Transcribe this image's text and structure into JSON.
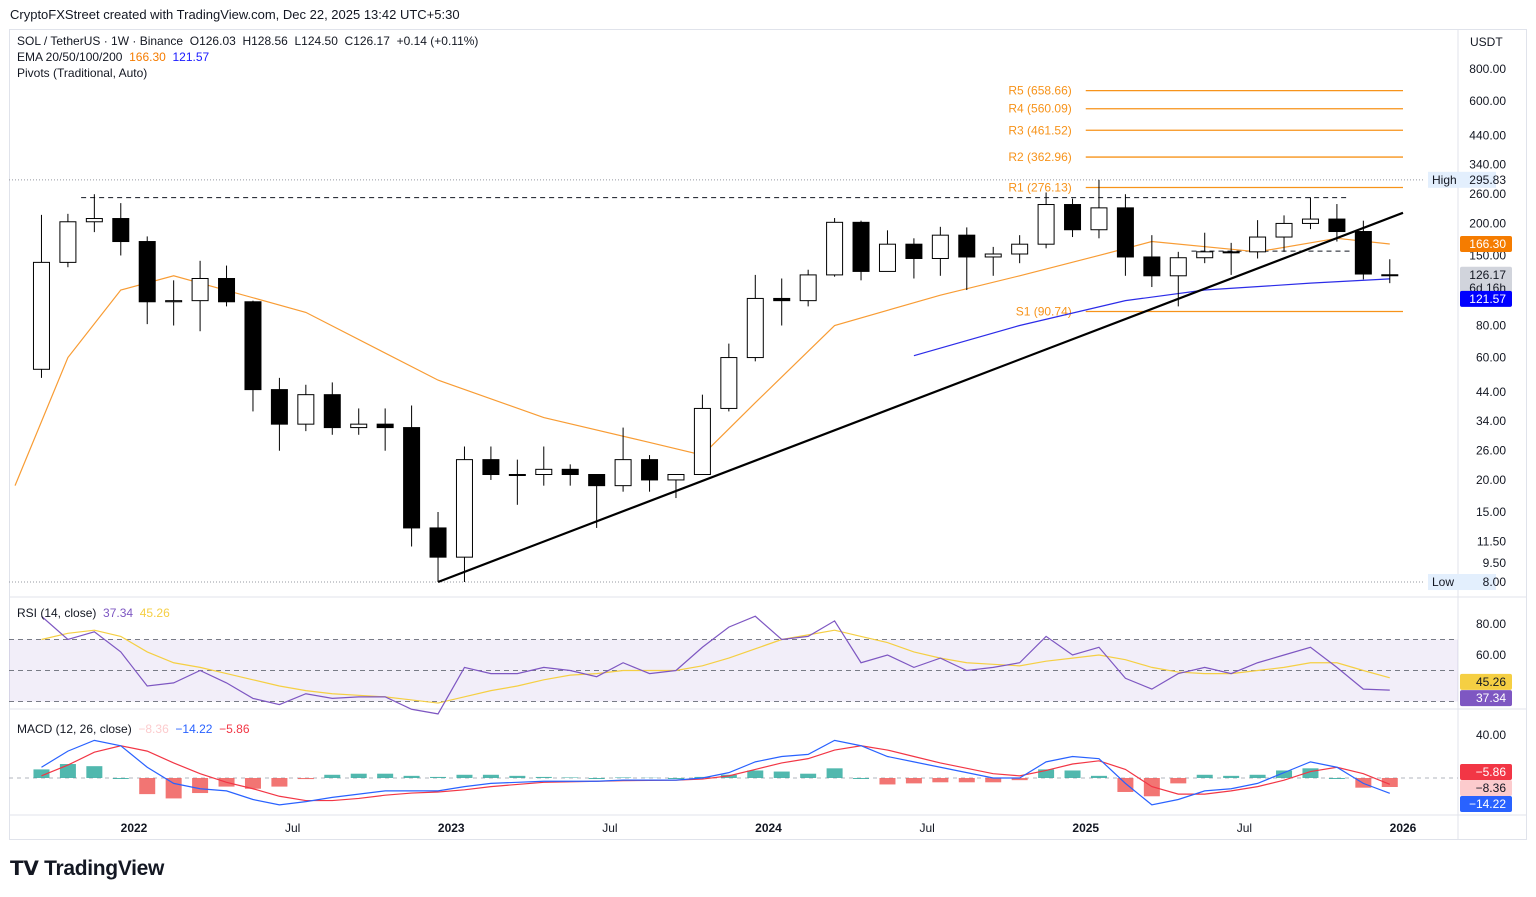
{
  "header": {
    "credit": "CryptoFXStreet created with TradingView.com, Dec 22, 2025 13:42 UTC+5:30"
  },
  "legend": {
    "symbol": "SOL / TetherUS · 1W · Binance",
    "ohlc": "O126.03  H128.56  L124.50  C126.17  +0.14 (+0.11%)",
    "ema_label": "EMA 20/50/100/200",
    "ema_val1": "166.30",
    "ema_val2": "121.57",
    "pivots": "Pivots (Traditional, Auto)"
  },
  "rsi_legend": {
    "label": "RSI (14, close)",
    "v1": "37.34",
    "v2": "45.26"
  },
  "macd_legend": {
    "label": "MACD (12, 26, close)",
    "hist": "−8.36",
    "macd": "−14.22",
    "signal": "−5.86"
  },
  "currency": "USDT",
  "logo": "TradingView",
  "colors": {
    "up": "#ffffff",
    "down": "#000000",
    "ema_orange": "#f89c34",
    "ema_blue": "#2c2ce8",
    "pivot": "#f7931a",
    "rsi": "#7e57c2",
    "rsi_ma": "#f5cf43",
    "macd": "#2962ff",
    "signal": "#f23645",
    "hist_up": "#26a69a",
    "hist_down": "#ef5350"
  },
  "chart_data": {
    "type": "candlestick",
    "scale": "log",
    "ylim": [
      8,
      800
    ],
    "price_ticks": [
      "800.00",
      "600.00",
      "440.00",
      "340.00",
      "260.00",
      "200.00",
      "150.00",
      "80.00",
      "60.00",
      "44.00",
      "34.00",
      "26.00",
      "20.00",
      "15.00",
      "11.50",
      "9.50"
    ],
    "x_ticks": [
      {
        "t": "2022-01",
        "label": "2022"
      },
      {
        "t": "2022-07",
        "label": "Jul"
      },
      {
        "t": "2023-01",
        "label": "2023"
      },
      {
        "t": "2023-07",
        "label": "Jul"
      },
      {
        "t": "2024-01",
        "label": "2024"
      },
      {
        "t": "2024-07",
        "label": "Jul"
      },
      {
        "t": "2025-01",
        "label": "2025"
      },
      {
        "t": "2025-07",
        "label": "Jul"
      },
      {
        "t": "2026-01",
        "label": "2026"
      }
    ],
    "candles": [
      [
        "2021-09",
        54,
        216,
        50,
        141
      ],
      [
        "2021-10",
        141,
        218,
        135,
        203
      ],
      [
        "2021-11",
        203,
        260,
        185,
        209
      ],
      [
        "2021-12",
        209,
        240,
        150,
        170
      ],
      [
        "2022-01",
        170,
        178,
        81,
        99
      ],
      [
        "2022-02",
        99,
        120,
        80,
        100
      ],
      [
        "2022-03",
        100,
        143,
        76,
        122
      ],
      [
        "2022-04",
        122,
        137,
        95,
        99
      ],
      [
        "2022-05",
        99,
        100,
        37,
        45
      ],
      [
        "2022-06",
        45,
        50,
        26,
        33
      ],
      [
        "2022-07",
        33,
        47,
        31,
        43
      ],
      [
        "2022-08",
        43,
        48,
        30,
        32
      ],
      [
        "2022-09",
        32,
        38,
        30,
        33
      ],
      [
        "2022-10",
        33,
        38,
        26,
        32
      ],
      [
        "2022-11",
        32,
        39,
        11,
        13
      ],
      [
        "2022-12",
        13,
        15,
        8,
        10
      ],
      [
        "2023-01",
        10,
        27,
        8,
        24
      ],
      [
        "2023-02",
        24,
        27,
        20,
        21
      ],
      [
        "2023-03",
        21,
        24,
        16,
        21
      ],
      [
        "2023-04",
        21,
        27,
        19,
        22
      ],
      [
        "2023-05",
        22,
        23,
        19,
        21
      ],
      [
        "2023-06",
        21,
        21,
        13,
        19
      ],
      [
        "2023-07",
        19,
        32,
        18,
        24
      ],
      [
        "2023-08",
        24,
        25,
        18,
        20
      ],
      [
        "2023-09",
        20,
        21,
        17,
        21
      ],
      [
        "2023-10",
        21,
        43,
        21,
        38
      ],
      [
        "2023-11",
        38,
        68,
        37,
        60
      ],
      [
        "2023-12",
        60,
        126,
        58,
        102
      ],
      [
        "2024-01",
        102,
        122,
        80,
        100
      ],
      [
        "2024-02",
        100,
        132,
        95,
        126
      ],
      [
        "2024-03",
        126,
        210,
        124,
        202
      ],
      [
        "2024-04",
        202,
        205,
        120,
        130
      ],
      [
        "2024-05",
        130,
        188,
        130,
        166
      ],
      [
        "2024-06",
        166,
        175,
        122,
        146
      ],
      [
        "2024-07",
        146,
        194,
        125,
        180
      ],
      [
        "2024-08",
        180,
        193,
        110,
        148
      ],
      [
        "2024-09",
        148,
        162,
        125,
        152
      ],
      [
        "2024-10",
        152,
        180,
        140,
        166
      ],
      [
        "2024-11",
        166,
        264,
        160,
        237
      ],
      [
        "2024-12",
        237,
        250,
        177,
        189
      ],
      [
        "2025-01",
        189,
        295.83,
        175,
        230
      ],
      [
        "2025-02",
        230,
        260,
        125,
        148
      ],
      [
        "2025-03",
        148,
        180,
        113,
        125
      ],
      [
        "2025-04",
        125,
        155,
        95,
        147
      ],
      [
        "2025-05",
        147,
        184,
        140,
        155
      ],
      [
        "2025-06",
        155,
        168,
        126,
        155
      ],
      [
        "2025-07",
        155,
        206,
        146,
        177
      ],
      [
        "2025-08",
        177,
        215,
        155,
        200
      ],
      [
        "2025-09",
        200,
        253,
        190,
        208
      ],
      [
        "2025-10",
        208,
        238,
        170,
        186
      ],
      [
        "2025-11",
        186,
        205,
        121,
        127
      ],
      [
        "2025-12",
        126.03,
        145,
        117,
        126.17
      ]
    ],
    "ema_orange": [
      [
        "2021-08",
        19
      ],
      [
        "2021-10",
        60
      ],
      [
        "2021-12",
        110
      ],
      [
        "2022-02",
        125
      ],
      [
        "2022-07",
        90
      ],
      [
        "2022-12",
        49
      ],
      [
        "2023-04",
        35
      ],
      [
        "2023-08",
        28
      ],
      [
        "2023-10",
        25
      ],
      [
        "2023-12",
        40
      ],
      [
        "2024-03",
        80
      ],
      [
        "2024-07",
        105
      ],
      [
        "2024-10",
        125
      ],
      [
        "2025-01",
        150
      ],
      [
        "2025-03",
        170
      ],
      [
        "2025-07",
        155
      ],
      [
        "2025-10",
        175
      ],
      [
        "2025-12",
        166.3
      ]
    ],
    "ema_blue": [
      [
        "2024-06",
        61
      ],
      [
        "2024-10",
        80
      ],
      [
        "2025-02",
        100
      ],
      [
        "2025-05",
        110
      ],
      [
        "2025-09",
        117
      ],
      [
        "2025-12",
        121.57
      ]
    ],
    "trendline": [
      [
        "2022-12",
        8
      ],
      [
        "2026-01",
        220
      ]
    ],
    "resistance": [
      [
        "2021-11",
        252
      ],
      [
        "2025-11",
        252
      ]
    ],
    "support_dashed": [
      [
        "2025-05",
        156
      ],
      [
        "2025-11",
        156
      ]
    ],
    "pivots": [
      {
        "label": "R5 (658.66)",
        "value": 658.66
      },
      {
        "label": "R4 (560.09)",
        "value": 560.09
      },
      {
        "label": "R3 (461.52)",
        "value": 461.52
      },
      {
        "label": "R2 (362.96)",
        "value": 362.96
      },
      {
        "label": "R1 (276.13)",
        "value": 276.13
      },
      {
        "label": "S1 (90.74)",
        "value": 90.74
      }
    ],
    "pivot_range": [
      "2025-01",
      "2026-01"
    ],
    "high": {
      "label": "High",
      "value": "295.83"
    },
    "low": {
      "label": "Low",
      "value": "8.00"
    },
    "price_badges": [
      {
        "text": "166.30",
        "value": 166.3,
        "bg": "#f57c00",
        "fg": "#fff"
      },
      {
        "text": "126.17",
        "sub": "6d 16h",
        "value": 126.17,
        "bg": "#d1d4dc",
        "fg": "#131722"
      },
      {
        "text": "121.57",
        "value": 121.57,
        "bg": "#0000ff",
        "fg": "#fff"
      }
    ],
    "rsi": {
      "ticks": [
        "80.00",
        "60.00"
      ],
      "levels": [
        70,
        50,
        30
      ],
      "values": [
        85,
        70,
        75,
        62,
        40,
        42,
        50,
        42,
        32,
        28,
        35,
        32,
        33,
        33,
        25,
        22,
        52,
        48,
        48,
        52,
        50,
        46,
        55,
        48,
        50,
        65,
        78,
        85,
        70,
        72,
        82,
        55,
        60,
        52,
        58,
        50,
        52,
        55,
        72,
        60,
        65,
        45,
        38,
        48,
        52,
        48,
        55,
        60,
        65,
        52,
        38,
        37.34
      ],
      "ma": [
        70,
        74,
        76,
        72,
        62,
        55,
        52,
        48,
        44,
        40,
        37,
        35,
        34,
        33,
        31,
        29,
        33,
        37,
        40,
        44,
        47,
        48,
        50,
        50,
        50,
        53,
        58,
        64,
        70,
        73,
        76,
        72,
        68,
        62,
        58,
        55,
        54,
        53,
        56,
        58,
        60,
        57,
        52,
        49,
        48,
        48,
        50,
        52,
        55,
        55,
        50,
        45.26
      ],
      "badges": [
        {
          "text": "45.26",
          "value": 45.26,
          "bg": "#f5cf43",
          "fg": "#131722"
        },
        {
          "text": "37.34",
          "value": 37.34,
          "bg": "#7e57c2",
          "fg": "#fff"
        }
      ]
    },
    "macd": {
      "ticks": [
        {
          "label": "40.00",
          "value": 40
        }
      ],
      "macd": [
        10,
        25,
        35,
        30,
        10,
        -5,
        -10,
        -12,
        -20,
        -25,
        -22,
        -18,
        -15,
        -12,
        -12,
        -12,
        -8,
        -5,
        -4,
        -3,
        -3,
        -3,
        -2,
        -2,
        -2,
        0,
        5,
        15,
        20,
        22,
        35,
        30,
        20,
        15,
        10,
        5,
        0,
        0,
        15,
        20,
        18,
        -5,
        -25,
        -20,
        -12,
        -10,
        -5,
        5,
        15,
        10,
        -5,
        -14.22
      ],
      "signal": [
        2,
        12,
        24,
        30,
        25,
        14,
        4,
        -4,
        -10,
        -17,
        -21,
        -21,
        -19,
        -16,
        -14,
        -13,
        -11,
        -8,
        -6,
        -4,
        -3.5,
        -3,
        -2.5,
        -2.2,
        -2,
        -1,
        2,
        8,
        14,
        18,
        26,
        30,
        26,
        20,
        14,
        9,
        4,
        2,
        7,
        13,
        16,
        8,
        -8,
        -15,
        -15,
        -12,
        -8,
        -2,
        6,
        10,
        4,
        -5.86
      ],
      "badges": [
        {
          "text": "−5.86",
          "value": -5.86,
          "bg": "#f23645",
          "fg": "#fff"
        },
        {
          "text": "−8.36",
          "value": -8.36,
          "bg": "#fccbcd",
          "fg": "#131722"
        },
        {
          "text": "−14.22",
          "value": -14.22,
          "bg": "#2962ff",
          "fg": "#fff"
        }
      ]
    }
  }
}
